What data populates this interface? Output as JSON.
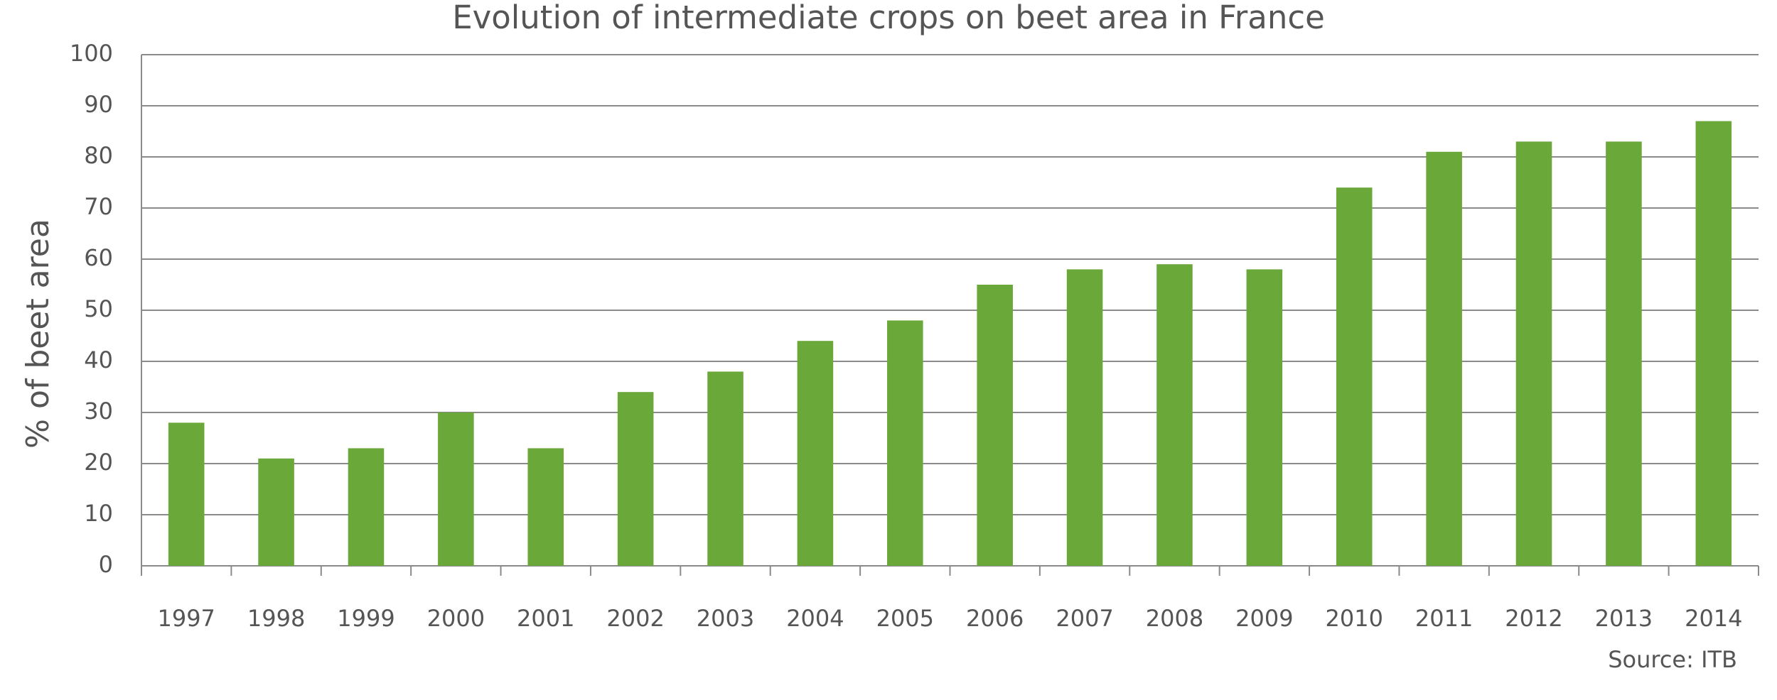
{
  "chart_data": {
    "type": "bar",
    "title": "Evolution of intermediate crops on beet area in France",
    "y_label": "% of beet area",
    "source": "Source: ITB",
    "categories": [
      "1997",
      "1998",
      "1999",
      "2000",
      "2001",
      "2002",
      "2003",
      "2004",
      "2005",
      "2006",
      "2007",
      "2008",
      "2009",
      "2010",
      "2011",
      "2012",
      "2013",
      "2014"
    ],
    "values": [
      28,
      21,
      23,
      30,
      23,
      34,
      38,
      44,
      48,
      55,
      58,
      59,
      58,
      74,
      81,
      83,
      83,
      87
    ],
    "color": "#6aa83a",
    "ylim": [
      0,
      100
    ],
    "yticks": [
      0,
      10,
      20,
      30,
      40,
      50,
      60,
      70,
      80,
      90,
      100
    ],
    "grid": true
  }
}
